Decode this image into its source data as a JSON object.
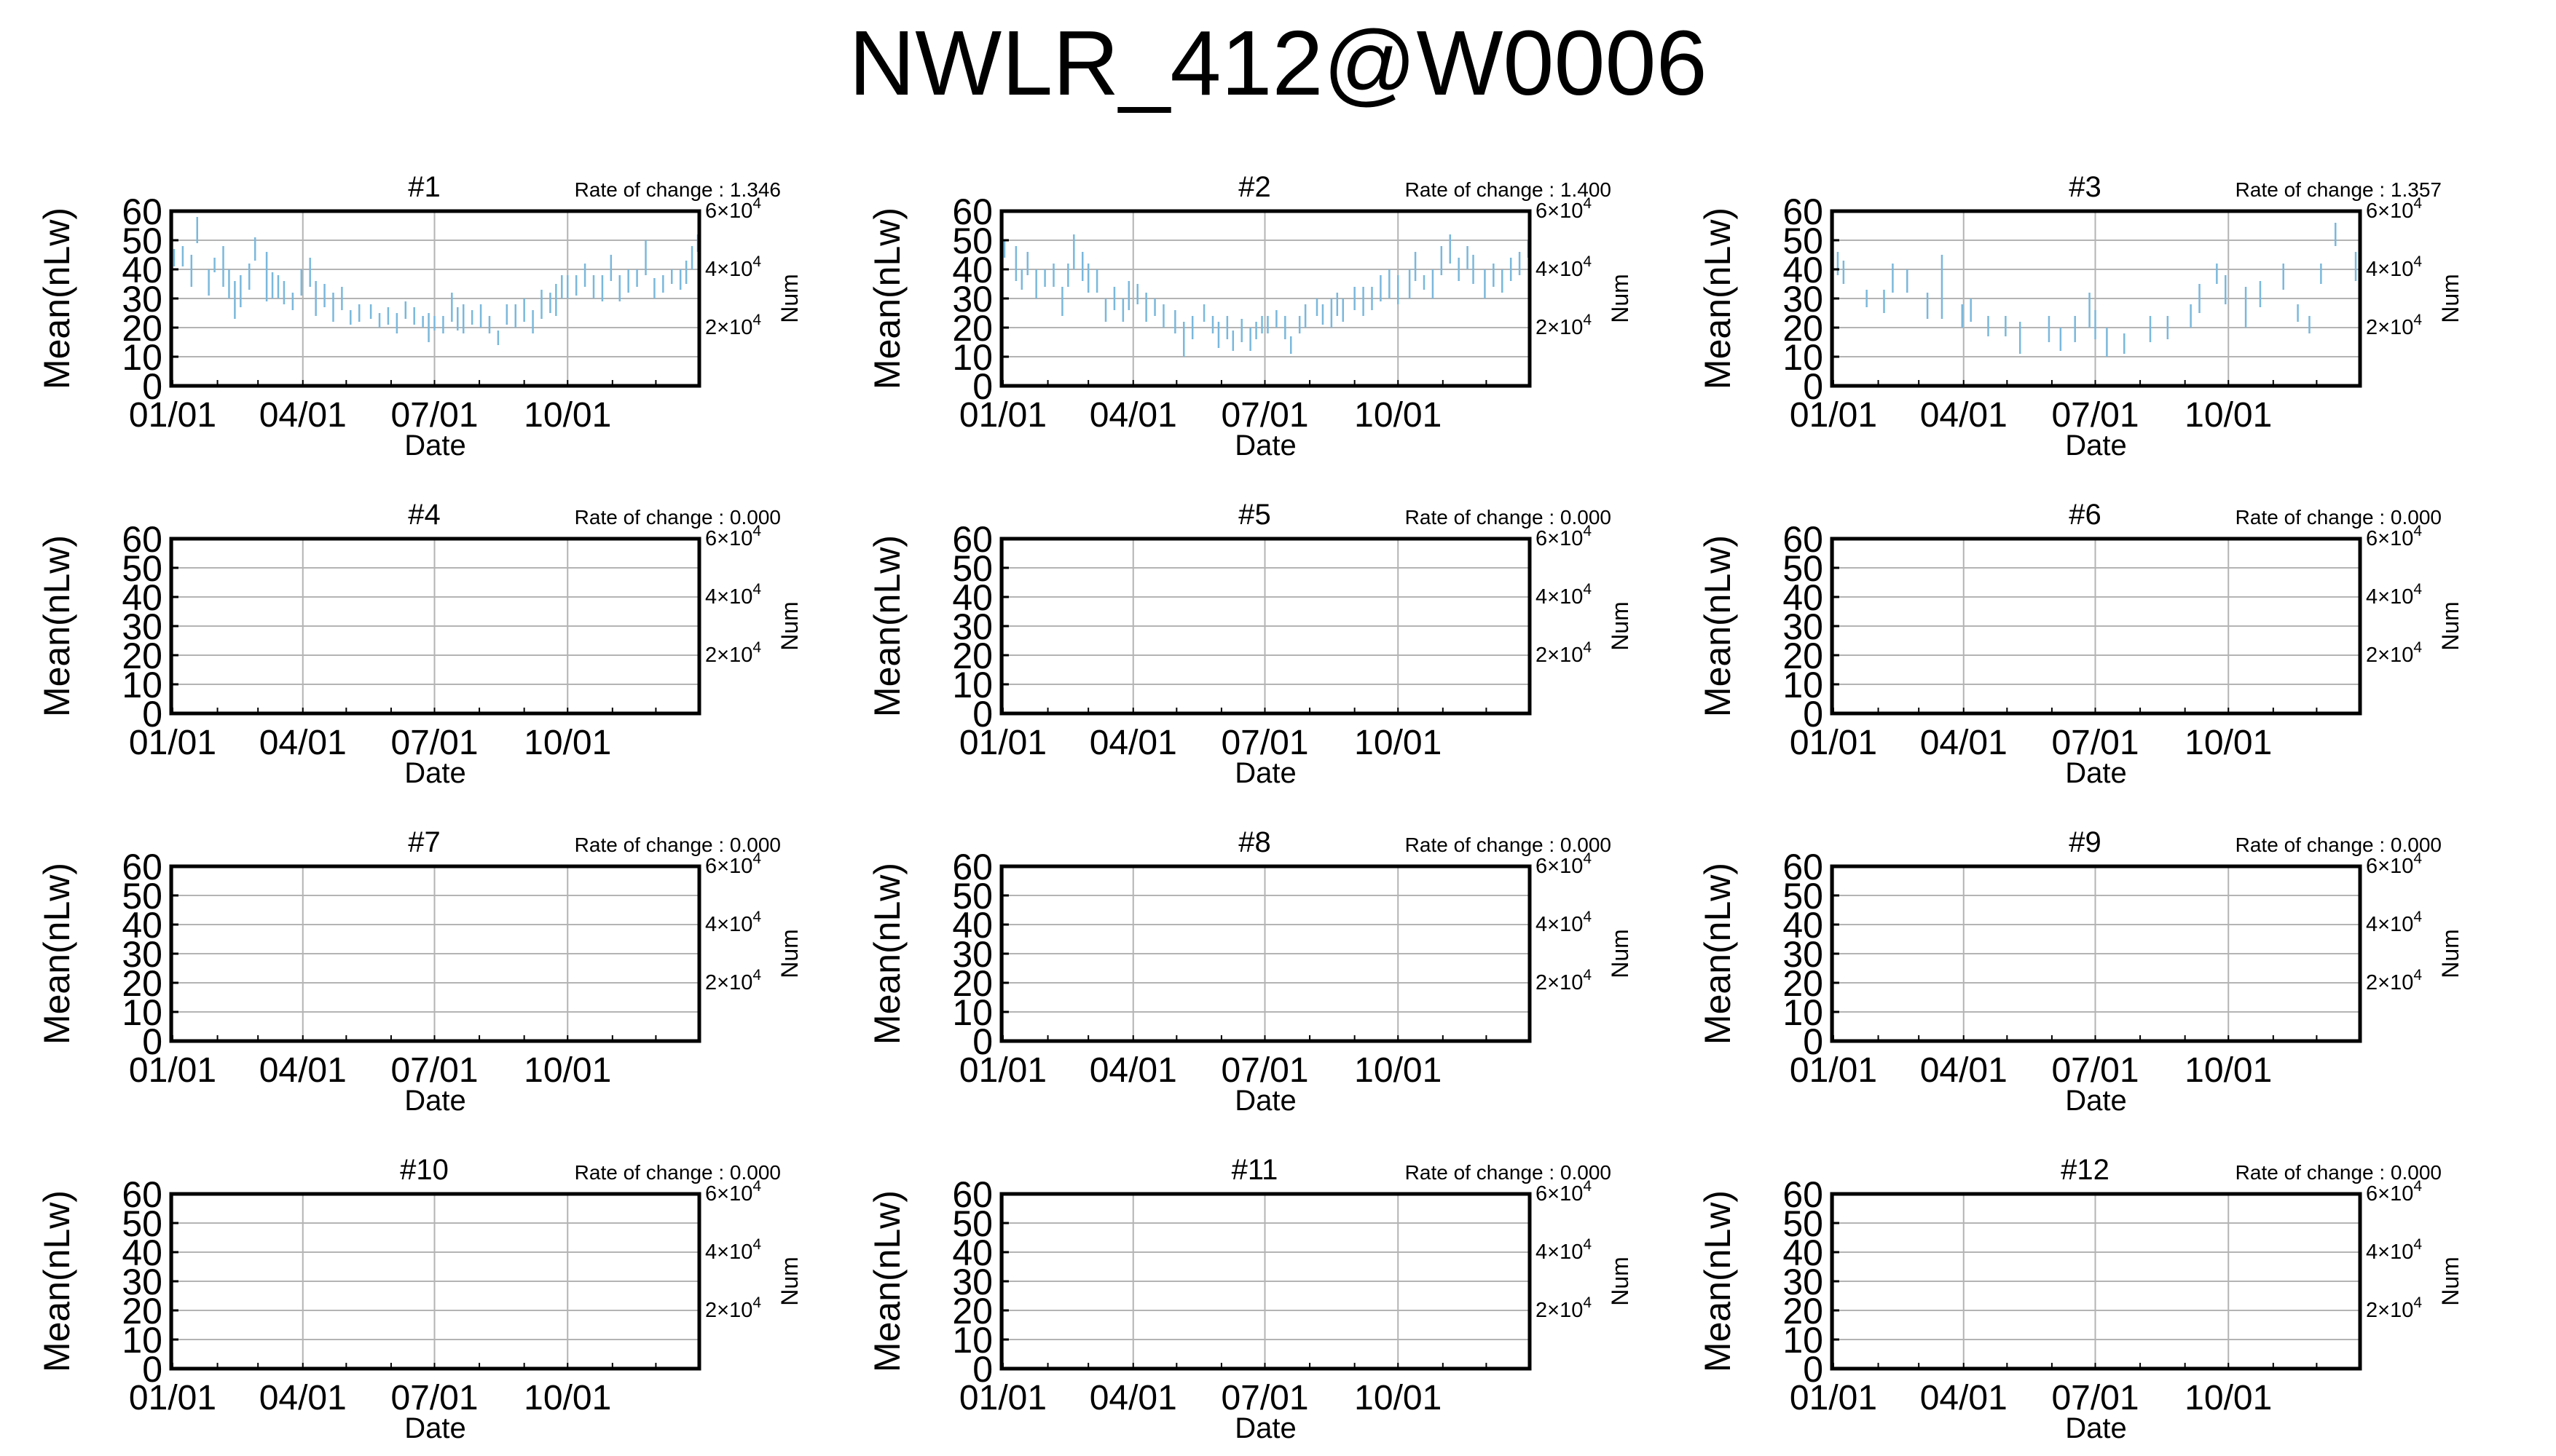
{
  "title": "NWLR_412@W0006",
  "style": {
    "axis_color": "#000000",
    "grid_color": "#b4b4b4",
    "data_color": "#7ab8dc"
  },
  "common": {
    "ylabel": "Mean(nLw)",
    "xlabel": "Date",
    "y2label": "Num",
    "rate_prefix": "Rate of change : ",
    "y_ticks": [
      "0",
      "10",
      "20",
      "30",
      "40",
      "50",
      "60"
    ],
    "y2_ticks": [
      {
        "mant": "2",
        "exp": "4",
        "value": 20000
      },
      {
        "mant": "4",
        "exp": "4",
        "value": 40000
      },
      {
        "mant": "6",
        "exp": "4",
        "value": 60000
      }
    ],
    "x_ticks": [
      {
        "label": "01/01",
        "day": 1
      },
      {
        "label": "04/01",
        "day": 91
      },
      {
        "label": "07/01",
        "day": 182
      },
      {
        "label": "10/01",
        "day": 274
      }
    ]
  },
  "chart_data": [
    {
      "type": "scatter",
      "panel": "#1",
      "rate": "1.346",
      "xlim": [
        0,
        365
      ],
      "ylim": [
        0,
        60
      ],
      "y2lim": [
        0,
        60000
      ],
      "x_unit": "day of year",
      "grid": true,
      "series": [
        {
          "x": [
            2,
            8,
            14,
            18,
            26,
            30,
            36,
            40,
            44,
            48,
            54,
            58,
            66,
            70,
            74,
            78,
            84,
            90,
            96,
            100,
            106,
            112,
            118,
            124,
            130,
            138,
            144,
            150,
            156,
            162,
            168,
            174,
            178,
            182,
            188,
            194,
            198,
            202,
            208,
            214,
            220,
            226,
            232,
            238,
            244,
            250,
            256,
            262,
            266,
            270,
            274,
            280,
            286,
            292,
            298,
            304,
            310,
            316,
            322,
            328,
            334,
            340,
            346,
            352,
            356,
            360,
            364
          ],
          "yerr": [
            [
              41,
              47
            ],
            [
              41,
              48
            ],
            [
              34,
              45
            ],
            [
              49,
              58
            ],
            [
              31,
              40
            ],
            [
              39,
              44
            ],
            [
              34,
              48
            ],
            [
              30,
              40
            ],
            [
              23,
              36
            ],
            [
              27,
              38
            ],
            [
              33,
              42
            ],
            [
              43,
              51
            ],
            [
              29,
              46
            ],
            [
              30,
              39
            ],
            [
              30,
              38
            ],
            [
              28,
              36
            ],
            [
              26,
              32
            ],
            [
              31,
              40
            ],
            [
              34,
              44
            ],
            [
              24,
              36
            ],
            [
              27,
              35
            ],
            [
              22,
              32
            ],
            [
              26,
              34
            ],
            [
              21,
              26
            ],
            [
              22,
              28
            ],
            [
              23,
              28
            ],
            [
              20,
              25
            ],
            [
              21,
              27
            ],
            [
              18,
              25
            ],
            [
              23,
              29
            ],
            [
              21,
              27
            ],
            [
              20,
              24
            ],
            [
              15,
              25
            ],
            [
              19,
              24
            ],
            [
              18,
              24
            ],
            [
              22,
              32
            ],
            [
              19,
              27
            ],
            [
              18,
              28
            ],
            [
              21,
              26
            ],
            [
              20,
              28
            ],
            [
              18,
              24
            ],
            [
              14,
              19
            ],
            [
              21,
              28
            ],
            [
              20,
              28
            ],
            [
              22,
              30
            ],
            [
              18,
              26
            ],
            [
              23,
              33
            ],
            [
              25,
              32
            ],
            [
              24,
              35
            ],
            [
              30,
              38
            ],
            [
              30,
              38
            ],
            [
              31,
              38
            ],
            [
              34,
              42
            ],
            [
              30,
              38
            ],
            [
              29,
              38
            ],
            [
              36,
              45
            ],
            [
              29,
              38
            ],
            [
              32,
              40
            ],
            [
              34,
              40
            ],
            [
              38,
              50
            ],
            [
              30,
              37
            ],
            [
              32,
              38
            ],
            [
              35,
              40
            ],
            [
              33,
              40
            ],
            [
              35,
              43
            ],
            [
              40,
              48
            ],
            [
              46,
              52
            ]
          ]
        }
      ]
    },
    {
      "type": "scatter",
      "panel": "#2",
      "rate": "1.400",
      "xlim": [
        0,
        365
      ],
      "ylim": [
        0,
        60
      ],
      "y2lim": [
        0,
        60000
      ],
      "x_unit": "day of year",
      "grid": true,
      "series": [
        {
          "x": [
            2,
            10,
            14,
            18,
            24,
            30,
            36,
            42,
            46,
            50,
            56,
            60,
            66,
            72,
            78,
            84,
            88,
            94,
            100,
            106,
            112,
            120,
            126,
            132,
            140,
            146,
            150,
            156,
            160,
            166,
            172,
            176,
            180,
            184,
            190,
            196,
            200,
            206,
            210,
            218,
            222,
            228,
            232,
            236,
            244,
            250,
            256,
            262,
            268,
            274,
            282,
            286,
            292,
            298,
            304,
            310,
            316,
            322,
            326,
            334,
            340,
            346,
            352,
            358,
            364
          ],
          "yerr": [
            [
              44,
              50
            ],
            [
              36,
              48
            ],
            [
              33,
              40
            ],
            [
              38,
              46
            ],
            [
              30,
              40
            ],
            [
              34,
              40
            ],
            [
              34,
              42
            ],
            [
              24,
              34
            ],
            [
              34,
              42
            ],
            [
              40,
              52
            ],
            [
              36,
              46
            ],
            [
              32,
              42
            ],
            [
              32,
              40
            ],
            [
              22,
              30
            ],
            [
              26,
              34
            ],
            [
              22,
              30
            ],
            [
              26,
              36
            ],
            [
              28,
              35
            ],
            [
              22,
              32
            ],
            [
              24,
              30
            ],
            [
              20,
              28
            ],
            [
              18,
              26
            ],
            [
              10,
              22
            ],
            [
              16,
              24
            ],
            [
              22,
              28
            ],
            [
              18,
              24
            ],
            [
              13,
              22
            ],
            [
              16,
              24
            ],
            [
              12,
              19
            ],
            [
              15,
              23
            ],
            [
              12,
              20
            ],
            [
              16,
              22
            ],
            [
              18,
              24
            ],
            [
              18,
              24
            ],
            [
              20,
              26
            ],
            [
              16,
              24
            ],
            [
              11,
              17
            ],
            [
              18,
              24
            ],
            [
              20,
              28
            ],
            [
              24,
              30
            ],
            [
              21,
              28
            ],
            [
              20,
              30
            ],
            [
              24,
              32
            ],
            [
              22,
              30
            ],
            [
              26,
              34
            ],
            [
              24,
              34
            ],
            [
              26,
              34
            ],
            [
              29,
              38
            ],
            [
              30,
              40
            ],
            [
              28,
              38
            ],
            [
              30,
              40
            ],
            [
              36,
              46
            ],
            [
              33,
              38
            ],
            [
              30,
              40
            ],
            [
              38,
              48
            ],
            [
              42,
              52
            ],
            [
              36,
              44
            ],
            [
              40,
              48
            ],
            [
              35,
              45
            ],
            [
              30,
              40
            ],
            [
              34,
              42
            ],
            [
              32,
              40
            ],
            [
              36,
              44
            ],
            [
              38,
              46
            ],
            [
              44,
              50
            ]
          ]
        }
      ]
    },
    {
      "type": "scatter",
      "panel": "#3",
      "rate": "1.357",
      "xlim": [
        0,
        365
      ],
      "ylim": [
        0,
        60
      ],
      "y2lim": [
        0,
        60000
      ],
      "x_unit": "day of year",
      "grid": true,
      "series": [
        {
          "x": [
            4,
            8,
            24,
            36,
            42,
            52,
            66,
            76,
            90,
            96,
            108,
            120,
            130,
            150,
            158,
            168,
            178,
            182,
            190,
            202,
            220,
            232,
            248,
            254,
            266,
            272,
            286,
            296,
            312,
            322,
            330,
            338,
            348,
            362
          ],
          "yerr": [
            [
              38,
              46
            ],
            [
              35,
              43
            ],
            [
              27,
              33
            ],
            [
              25,
              33
            ],
            [
              32,
              42
            ],
            [
              32,
              40
            ],
            [
              23,
              32
            ],
            [
              23,
              45
            ],
            [
              20,
              28
            ],
            [
              22,
              30
            ],
            [
              17,
              24
            ],
            [
              17,
              24
            ],
            [
              11,
              22
            ],
            [
              15,
              24
            ],
            [
              12,
              20
            ],
            [
              15,
              24
            ],
            [
              20,
              32
            ],
            [
              16,
              26
            ],
            [
              10,
              20
            ],
            [
              11,
              18
            ],
            [
              15,
              24
            ],
            [
              16,
              24
            ],
            [
              20,
              28
            ],
            [
              25,
              35
            ],
            [
              35,
              42
            ],
            [
              28,
              38
            ],
            [
              20,
              34
            ],
            [
              27,
              36
            ],
            [
              33,
              42
            ],
            [
              22,
              28
            ],
            [
              18,
              24
            ],
            [
              35,
              42
            ],
            [
              48,
              56
            ],
            [
              36,
              46
            ]
          ]
        }
      ]
    },
    {
      "type": "scatter",
      "panel": "#4",
      "rate": "0.000",
      "xlim": [
        0,
        365
      ],
      "ylim": [
        0,
        60
      ],
      "y2lim": [
        0,
        60000
      ],
      "x_unit": "day of year",
      "grid": true,
      "series": [
        {
          "x": [],
          "yerr": []
        }
      ]
    },
    {
      "type": "scatter",
      "panel": "#5",
      "rate": "0.000",
      "xlim": [
        0,
        365
      ],
      "ylim": [
        0,
        60
      ],
      "y2lim": [
        0,
        60000
      ],
      "x_unit": "day of year",
      "grid": true,
      "series": [
        {
          "x": [],
          "yerr": []
        }
      ]
    },
    {
      "type": "scatter",
      "panel": "#6",
      "rate": "0.000",
      "xlim": [
        0,
        365
      ],
      "ylim": [
        0,
        60
      ],
      "y2lim": [
        0,
        60000
      ],
      "x_unit": "day of year",
      "grid": true,
      "series": [
        {
          "x": [],
          "yerr": []
        }
      ]
    },
    {
      "type": "scatter",
      "panel": "#7",
      "rate": "0.000",
      "xlim": [
        0,
        365
      ],
      "ylim": [
        0,
        60
      ],
      "y2lim": [
        0,
        60000
      ],
      "x_unit": "day of year",
      "grid": true,
      "series": [
        {
          "x": [],
          "yerr": []
        }
      ]
    },
    {
      "type": "scatter",
      "panel": "#8",
      "rate": "0.000",
      "xlim": [
        0,
        365
      ],
      "ylim": [
        0,
        60
      ],
      "y2lim": [
        0,
        60000
      ],
      "x_unit": "day of year",
      "grid": true,
      "series": [
        {
          "x": [],
          "yerr": []
        }
      ]
    },
    {
      "type": "scatter",
      "panel": "#9",
      "rate": "0.000",
      "xlim": [
        0,
        365
      ],
      "ylim": [
        0,
        60
      ],
      "y2lim": [
        0,
        60000
      ],
      "x_unit": "day of year",
      "grid": true,
      "series": [
        {
          "x": [],
          "yerr": []
        }
      ]
    },
    {
      "type": "scatter",
      "panel": "#10",
      "rate": "0.000",
      "xlim": [
        0,
        365
      ],
      "ylim": [
        0,
        60
      ],
      "y2lim": [
        0,
        60000
      ],
      "x_unit": "day of year",
      "grid": true,
      "series": [
        {
          "x": [],
          "yerr": []
        }
      ]
    },
    {
      "type": "scatter",
      "panel": "#11",
      "rate": "0.000",
      "xlim": [
        0,
        365
      ],
      "ylim": [
        0,
        60
      ],
      "y2lim": [
        0,
        60000
      ],
      "x_unit": "day of year",
      "grid": true,
      "series": [
        {
          "x": [],
          "yerr": []
        }
      ]
    },
    {
      "type": "scatter",
      "panel": "#12",
      "rate": "0.000",
      "xlim": [
        0,
        365
      ],
      "ylim": [
        0,
        60
      ],
      "y2lim": [
        0,
        60000
      ],
      "x_unit": "day of year",
      "grid": true,
      "series": [
        {
          "x": [],
          "yerr": []
        }
      ]
    }
  ]
}
